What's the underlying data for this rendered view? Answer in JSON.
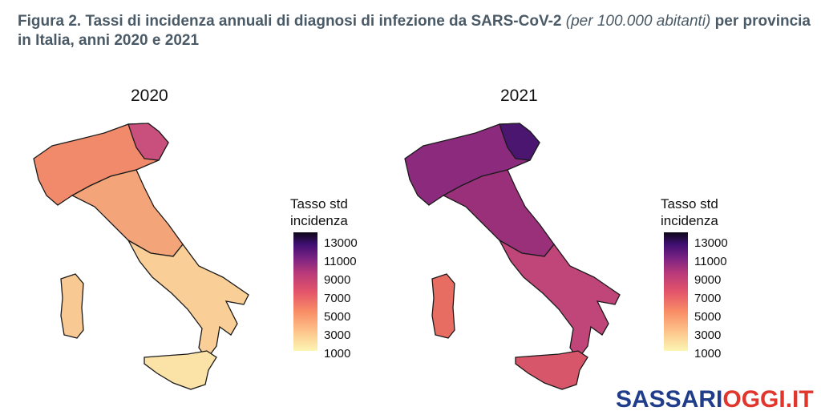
{
  "caption": {
    "bold_part": "Figura 2. Tassi di incidenza annuali di diagnosi di infezione da SARS-CoV-2",
    "italic_part": "(per 100.000 abitanti)",
    "bold_part_end": "per provincia in Italia, anni 2020 e 2021"
  },
  "maps": [
    {
      "year": "2020",
      "colors": {
        "north": "#f08a6a",
        "northeast": "#c9507c",
        "center": "#f4a479",
        "south": "#f9cf97",
        "islands": "#fbe2a6",
        "sardinia": "#f9c994"
      }
    },
    {
      "year": "2021",
      "colors": {
        "north": "#8c2a7e",
        "northeast": "#4a1670",
        "center": "#9a307a",
        "south": "#c04578",
        "islands": "#d8566a",
        "sardinia": "#e76d62"
      }
    }
  ],
  "legend": {
    "title_line1": "Tasso std",
    "title_line2": "incidenza",
    "ticks": [
      "13000",
      "11000",
      "9000",
      "7000",
      "5000",
      "3000",
      "1000"
    ]
  },
  "watermark": {
    "part1": "SASSARI",
    "part2": "OGGI.IT"
  }
}
